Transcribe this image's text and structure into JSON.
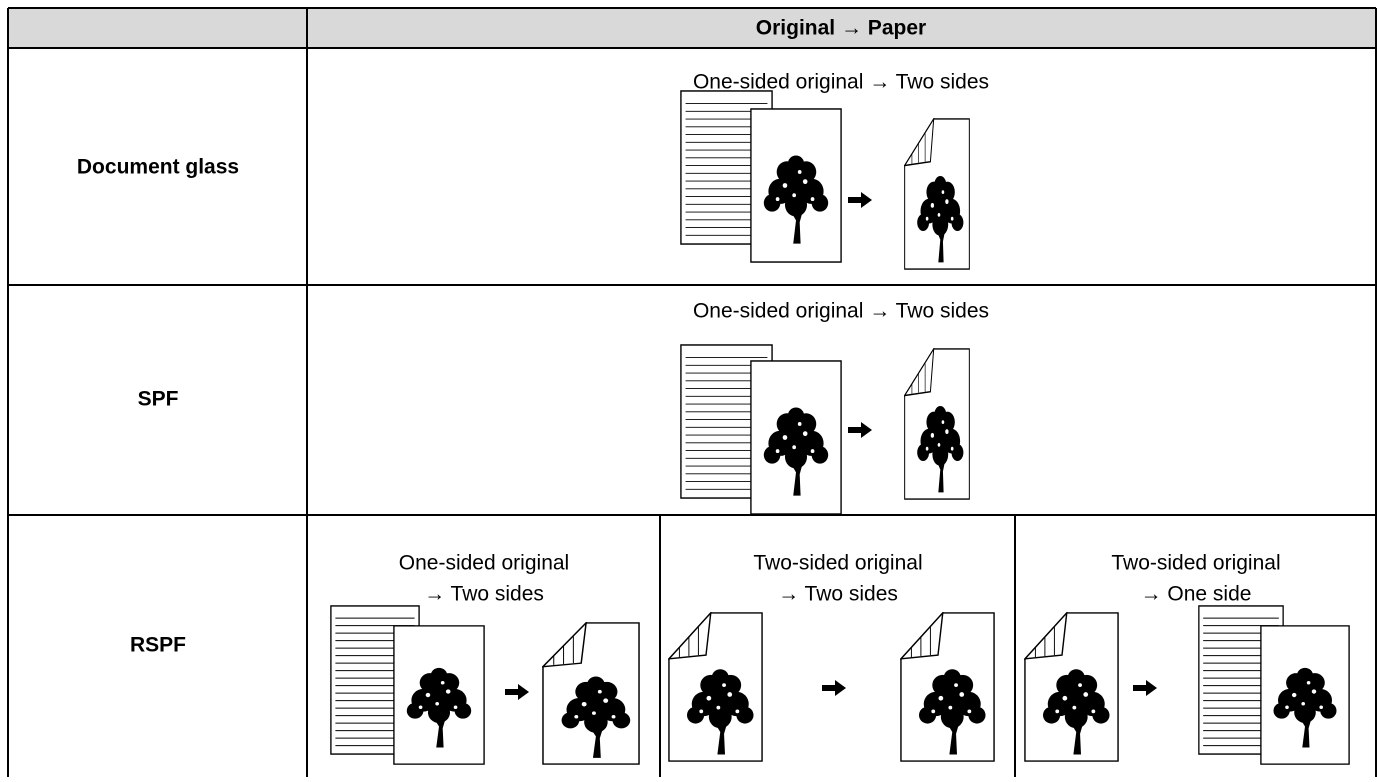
{
  "table": {
    "header": {
      "title": "Original → Paper"
    },
    "rows": [
      {
        "label": "Document glass",
        "captions": [
          [
            "One-sided original → Two sides"
          ]
        ]
      },
      {
        "label": "SPF",
        "captions": [
          [
            "One-sided original → Two sides"
          ]
        ]
      },
      {
        "label": "RSPF",
        "captions": [
          [
            "One-sided original",
            "→ Two sides"
          ],
          [
            "Two-sided original",
            "→ Two sides"
          ],
          [
            "Two-sided original",
            "→ One side"
          ]
        ]
      }
    ]
  }
}
